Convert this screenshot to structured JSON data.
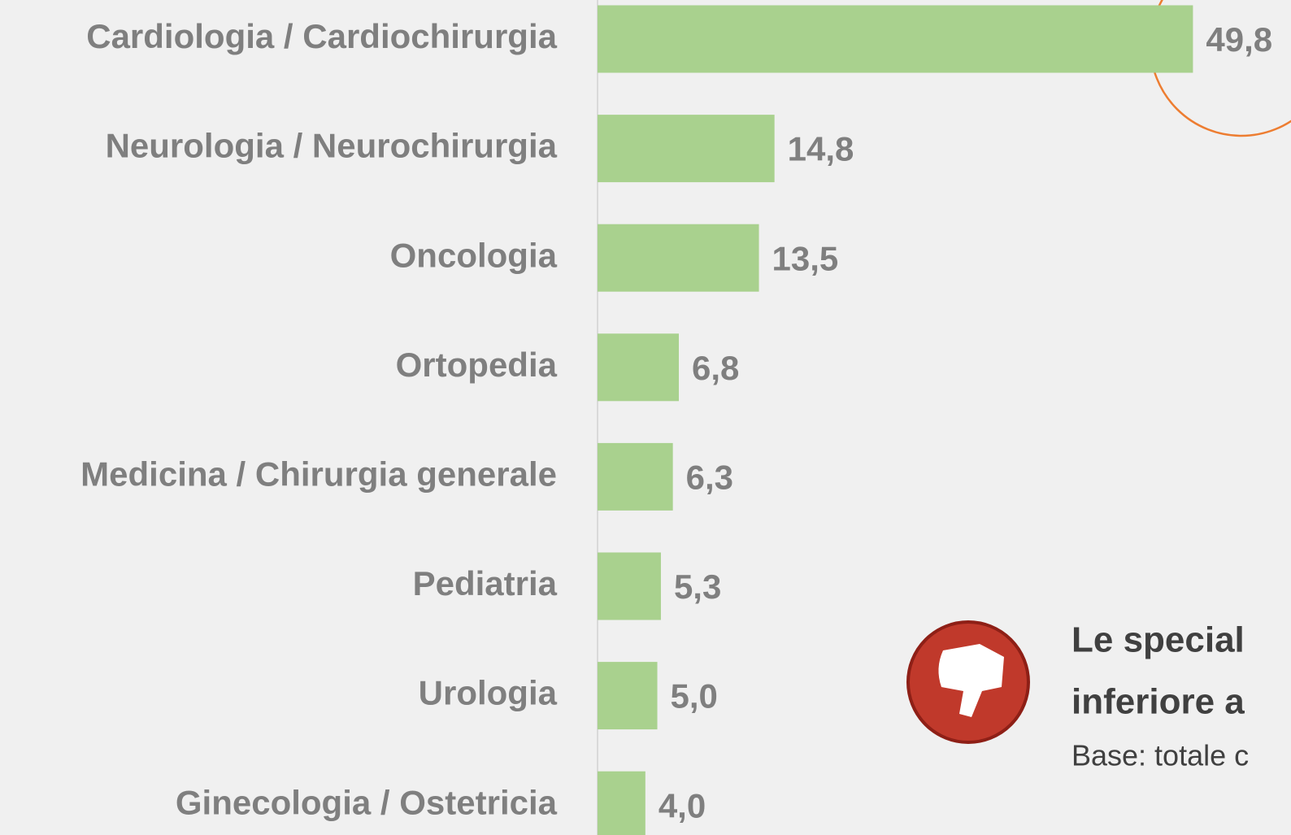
{
  "chart_data": {
    "type": "bar",
    "orientation": "horizontal",
    "categories": [
      "Cardiologia / Cardiochirurgia",
      "Neurologia / Neurochirurgia",
      "Oncologia",
      "Ortopedia",
      "Medicina / Chirurgia generale",
      "Pediatria",
      "Urologia",
      "Ginecologia / Ostetricia"
    ],
    "values": [
      49.8,
      14.8,
      13.5,
      6.8,
      6.3,
      5.3,
      5.0,
      4.0
    ],
    "value_labels": [
      "49,8",
      "14,8",
      "13,5",
      "6,8",
      "6,3",
      "5,3",
      "5,0",
      "4,0"
    ],
    "color": "#a9d18e",
    "xlim": [
      0,
      58
    ],
    "annotations": [
      "Le special",
      "inferiore a",
      "Base: totale c"
    ]
  }
}
